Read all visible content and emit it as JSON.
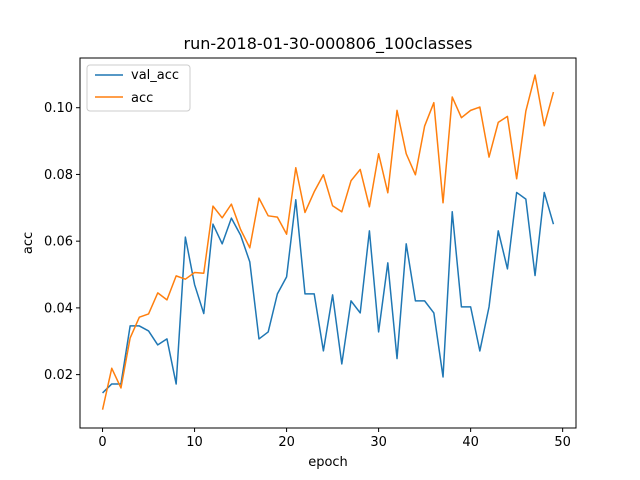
{
  "chart_data": {
    "type": "line",
    "title": "run-2018-01-30-000806_100classes",
    "xlabel": "epoch",
    "ylabel": "acc",
    "xlim": [
      -2.45,
      51.45
    ],
    "ylim": [
      0.004,
      0.1149
    ],
    "xticks": [
      0,
      10,
      20,
      30,
      40,
      50
    ],
    "yticks": [
      0.02,
      0.04,
      0.06,
      0.08,
      0.1
    ],
    "ytick_labels": [
      "0.02",
      "0.04",
      "0.06",
      "0.08",
      "0.10"
    ],
    "grid": false,
    "legend_position": "upper left",
    "x": [
      0,
      1,
      2,
      3,
      4,
      5,
      6,
      7,
      8,
      9,
      10,
      11,
      12,
      13,
      14,
      15,
      16,
      17,
      18,
      19,
      20,
      21,
      22,
      23,
      24,
      25,
      26,
      27,
      28,
      29,
      30,
      31,
      32,
      33,
      34,
      35,
      36,
      37,
      38,
      39,
      40,
      41,
      42,
      43,
      44,
      45,
      46,
      47,
      48,
      49
    ],
    "series": [
      {
        "name": "val_acc",
        "color": "#1f77b4",
        "values": [
          0.0145,
          0.0172,
          0.0172,
          0.0346,
          0.0346,
          0.0331,
          0.0289,
          0.0307,
          0.0172,
          0.0612,
          0.047,
          0.0383,
          0.0651,
          0.0592,
          0.0669,
          0.0618,
          0.0538,
          0.0307,
          0.0328,
          0.0442,
          0.0493,
          0.0724,
          0.0442,
          0.0442,
          0.0271,
          0.0439,
          0.0232,
          0.0421,
          0.0385,
          0.0631,
          0.0328,
          0.0535,
          0.0248,
          0.0592,
          0.0421,
          0.0421,
          0.0385,
          0.0193,
          0.0688,
          0.0403,
          0.0403,
          0.0271,
          0.0403,
          0.0631,
          0.0517,
          0.0746,
          0.0726,
          0.0497,
          0.0746,
          0.0651
        ]
      },
      {
        "name": "acc",
        "color": "#ff7f0e",
        "values": [
          0.0095,
          0.0219,
          0.016,
          0.031,
          0.0372,
          0.0382,
          0.0445,
          0.0424,
          0.0496,
          0.0486,
          0.0506,
          0.0504,
          0.0705,
          0.067,
          0.0711,
          0.0635,
          0.058,
          0.0729,
          0.0676,
          0.0672,
          0.0621,
          0.082,
          0.0686,
          0.0748,
          0.0799,
          0.0706,
          0.0688,
          0.0781,
          0.0815,
          0.0703,
          0.0862,
          0.0745,
          0.0992,
          0.0862,
          0.0799,
          0.0945,
          0.1015,
          0.0715,
          0.1032,
          0.097,
          0.0992,
          0.1002,
          0.0852,
          0.0956,
          0.0974,
          0.0787,
          0.099,
          0.1098,
          0.0946,
          0.1047
        ]
      }
    ]
  }
}
